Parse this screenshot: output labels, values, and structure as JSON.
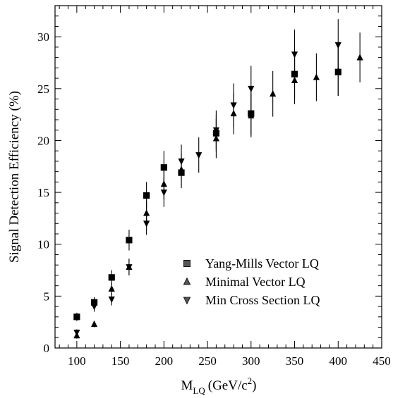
{
  "chart_data": {
    "type": "scatter",
    "xlabel": "M",
    "xlabel_sub": "LQ",
    "xlabel_unit_pre": "(GeV/c",
    "xlabel_unit_sup": "2",
    "xlabel_unit_post": ")",
    "ylabel": "Signal Detection Efficiency (%)",
    "xlim": [
      75,
      450
    ],
    "ylim": [
      0,
      33
    ],
    "x_ticks": [
      "100",
      "150",
      "200",
      "250",
      "300",
      "350",
      "400",
      "450"
    ],
    "y_ticks": [
      "0",
      "5",
      "10",
      "15",
      "20",
      "25",
      "30"
    ],
    "grid": false,
    "legend_position": "bottom-right",
    "series": [
      {
        "name": "Yang-Mills Vector LQ",
        "marker": "square",
        "color": "#000000",
        "points": [
          {
            "x": 100,
            "y": 3.0,
            "err": 0.4
          },
          {
            "x": 120,
            "y": 4.4,
            "err": 0.5
          },
          {
            "x": 140,
            "y": 6.8,
            "err": 0.7
          },
          {
            "x": 160,
            "y": 10.4,
            "err": 1.0
          },
          {
            "x": 180,
            "y": 14.7,
            "err": 1.3
          },
          {
            "x": 200,
            "y": 17.4,
            "err": 1.6
          },
          {
            "x": 220,
            "y": 16.9,
            "err": 1.5
          },
          {
            "x": 260,
            "y": 20.7,
            "err": 1.8
          },
          {
            "x": 300,
            "y": 22.6,
            "err": 2.1
          },
          {
            "x": 350,
            "y": 26.4,
            "err": 2.3
          },
          {
            "x": 400,
            "y": 26.6,
            "err": 2.3
          }
        ]
      },
      {
        "name": "Minimal Vector LQ",
        "marker": "triangle-up",
        "color": "#000000",
        "points": [
          {
            "x": 100,
            "y": 1.2,
            "err": 0.3
          },
          {
            "x": 120,
            "y": 2.3,
            "err": 0.3
          },
          {
            "x": 140,
            "y": 5.7,
            "err": 0.6
          },
          {
            "x": 160,
            "y": 7.8,
            "err": 0.8
          },
          {
            "x": 180,
            "y": 13.0,
            "err": 1.2
          },
          {
            "x": 200,
            "y": 15.8,
            "err": 1.5
          },
          {
            "x": 220,
            "y": 17.2,
            "err": 1.6
          },
          {
            "x": 260,
            "y": 20.2,
            "err": 1.9
          },
          {
            "x": 280,
            "y": 22.6,
            "err": 2.0
          },
          {
            "x": 300,
            "y": 22.4,
            "err": 2.1
          },
          {
            "x": 325,
            "y": 24.5,
            "err": 2.2
          },
          {
            "x": 350,
            "y": 25.8,
            "err": 2.3
          },
          {
            "x": 375,
            "y": 26.1,
            "err": 2.3
          },
          {
            "x": 400,
            "y": 26.7,
            "err": 2.4
          },
          {
            "x": 425,
            "y": 28.0,
            "err": 2.4
          }
        ]
      },
      {
        "name": "Min Cross Section LQ",
        "marker": "triangle-down",
        "color": "#000000",
        "points": [
          {
            "x": 100,
            "y": 1.5,
            "err": 0.3
          },
          {
            "x": 120,
            "y": 4.0,
            "err": 0.5
          },
          {
            "x": 140,
            "y": 4.7,
            "err": 0.6
          },
          {
            "x": 160,
            "y": 7.8,
            "err": 0.8
          },
          {
            "x": 180,
            "y": 12.0,
            "err": 1.1
          },
          {
            "x": 200,
            "y": 15.0,
            "err": 1.4
          },
          {
            "x": 220,
            "y": 18.0,
            "err": 1.6
          },
          {
            "x": 240,
            "y": 18.6,
            "err": 1.7
          },
          {
            "x": 260,
            "y": 21.0,
            "err": 1.9
          },
          {
            "x": 280,
            "y": 23.4,
            "err": 2.1
          },
          {
            "x": 300,
            "y": 25.0,
            "err": 2.2
          },
          {
            "x": 350,
            "y": 28.3,
            "err": 2.4
          },
          {
            "x": 400,
            "y": 29.2,
            "err": 2.5
          }
        ]
      }
    ]
  }
}
